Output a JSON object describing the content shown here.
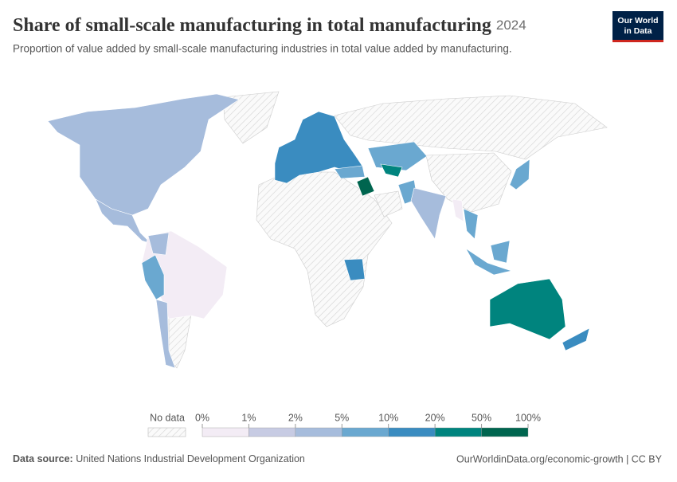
{
  "header": {
    "title": "Share of small-scale manufacturing in total manufacturing",
    "year": "2024",
    "subtitle": "Proportion of value added by small-scale manufacturing industries in total value added by manufacturing.",
    "logo": [
      "Our World",
      "in Data"
    ]
  },
  "legend": {
    "no_data": "No data",
    "ticks": [
      "0%",
      "1%",
      "2%",
      "5%",
      "10%",
      "20%",
      "50%",
      "100%"
    ],
    "colors": [
      "#f3ecf5",
      "#c7cbe3",
      "#a6bcdc",
      "#6aa8d0",
      "#3a8cc0",
      "#00847e",
      "#00654f"
    ]
  },
  "footer": {
    "source_label": "Data source:",
    "source": "United Nations Industrial Development Organization",
    "url": "OurWorldinData.org/economic-growth | CC BY"
  }
}
